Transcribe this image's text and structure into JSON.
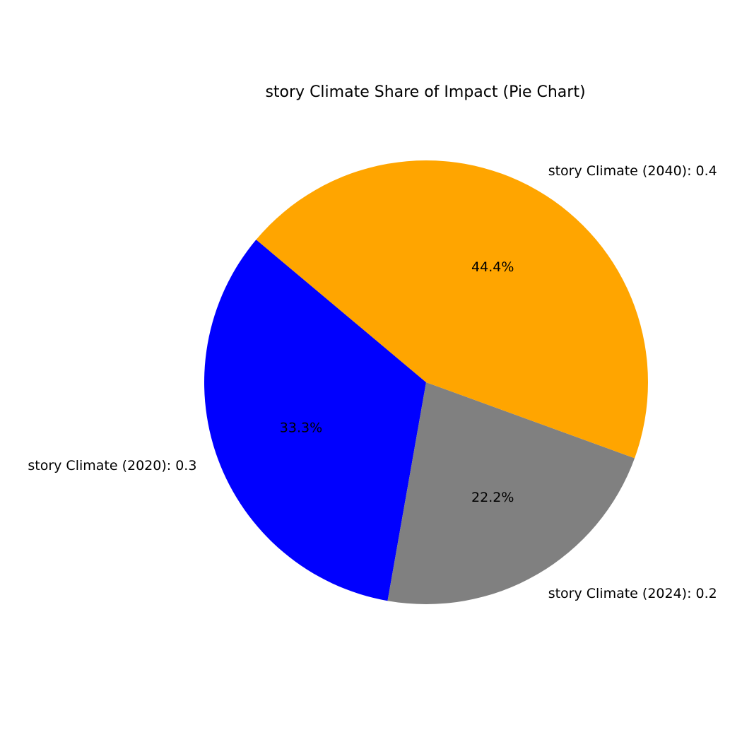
{
  "chart_data": {
    "type": "pie",
    "title": "story Climate Share of Impact (Pie Chart)",
    "slices": [
      {
        "label": "story Climate (2020): 0.3",
        "value": 0.3,
        "percent_label": "33.3%",
        "color": "#0000ff"
      },
      {
        "label": "story Climate (2024): 0.2",
        "value": 0.2,
        "percent_label": "22.2%",
        "color": "#808080"
      },
      {
        "label": "story Climate (2040): 0.4",
        "value": 0.4,
        "percent_label": "44.4%",
        "color": "#ffa500"
      }
    ],
    "start_angle_deg": 140,
    "direction": "counterclockwise",
    "legend": "none"
  }
}
